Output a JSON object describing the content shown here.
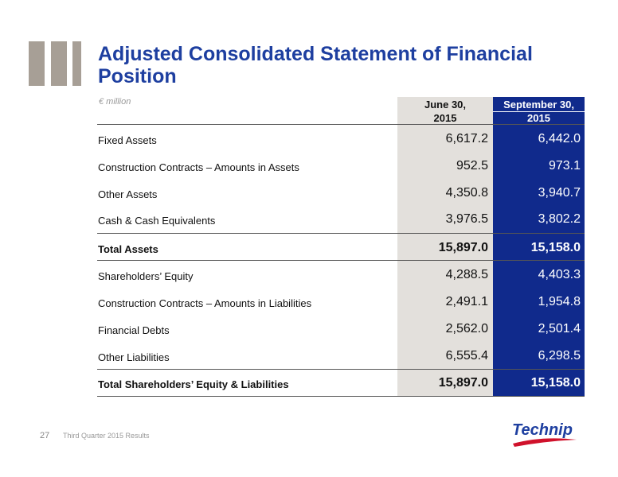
{
  "header": {
    "title_line1": "Adjusted Consolidated Statement of Financial",
    "title_line2": "Position"
  },
  "table": {
    "unit": "€ million",
    "columns": [
      {
        "line1": "June 30,",
        "line2": "2015"
      },
      {
        "line1": "September 30,",
        "line2": "2015"
      }
    ],
    "rows": [
      {
        "label": "Fixed Assets",
        "june": "6,617.2",
        "sep": "6,442.0"
      },
      {
        "label": "Construction Contracts – Amounts in Assets",
        "june": "952.5",
        "sep": "973.1"
      },
      {
        "label": "Other Assets",
        "june": "4,350.8",
        "sep": "3,940.7"
      },
      {
        "label": "Cash & Cash Equivalents",
        "june": "3,976.5",
        "sep": "3,802.2"
      },
      {
        "label": "Total Assets",
        "june": "15,897.0",
        "sep": "15,158.0"
      },
      {
        "label": "Shareholders’ Equity",
        "june": "4,288.5",
        "sep": "4,403.3"
      },
      {
        "label": "Construction Contracts – Amounts in Liabilities",
        "june": "2,491.1",
        "sep": "1,954.8"
      },
      {
        "label": "Financial Debts",
        "june": "2,562.0",
        "sep": "2,501.4"
      },
      {
        "label": "Other Liabilities",
        "june": "6,555.4",
        "sep": "6,298.5"
      },
      {
        "label": "Total Shareholders’ Equity & Liabilities",
        "june": "15,897.0",
        "sep": "15,158.0"
      }
    ]
  },
  "footer": {
    "page_number": "27",
    "text": "Third Quarter 2015 Results",
    "logo_text": "Technip"
  },
  "colors": {
    "title_blue": "#1e3fa0",
    "sep_column": "#102a8c",
    "june_column": "#e3e0dc",
    "logo_red": "#d0112b"
  }
}
